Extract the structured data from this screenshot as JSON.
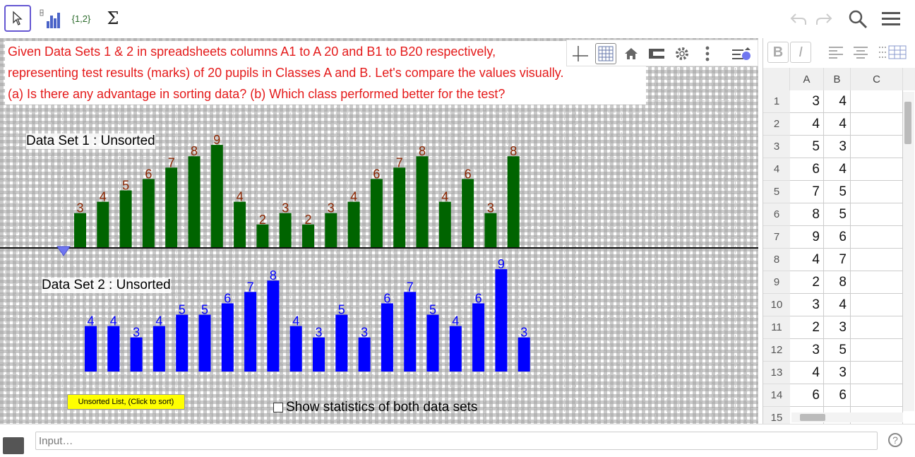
{
  "toolbar": {
    "tools": [
      {
        "name": "move-tool",
        "label": ""
      },
      {
        "name": "chart-tool",
        "label": ""
      },
      {
        "name": "list-tool",
        "label": "{1,2}"
      },
      {
        "name": "sum-tool",
        "label": "Σ"
      }
    ],
    "icons": [
      "undo-icon",
      "redo-icon",
      "search-icon",
      "menu-icon"
    ]
  },
  "question": {
    "lines": [
      "Given Data Sets 1 & 2 in spreadsheets columns A1 to A 20 and B1 to B20 respectively,",
      "representing test results (marks) of 20 pupils in Classes A and B. Let's compare the values visually.",
      "(a) Is there any advantage in sorting data? (b) Which class performed better for the test?"
    ]
  },
  "chart_data": [
    {
      "type": "bar",
      "title": "Data Set 1 : Unsorted",
      "values": [
        3,
        4,
        5,
        6,
        7,
        8,
        9,
        4,
        2,
        3,
        2,
        3,
        4,
        6,
        7,
        8,
        4,
        6,
        3,
        8
      ],
      "color": "#006400",
      "label_color": "#8b2500"
    },
    {
      "type": "bar",
      "title": "Data Set 2 : Unsorted",
      "values": [
        4,
        4,
        3,
        4,
        5,
        5,
        6,
        7,
        8,
        4,
        3,
        5,
        3,
        6,
        7,
        5,
        4,
        6,
        9,
        3
      ],
      "color": "#0000ff",
      "label_color": "#0000ff"
    }
  ],
  "controls": {
    "sort_button": "Unsorted List, (Click to sort)",
    "stats_checkbox": "Show statistics of both data sets"
  },
  "spreadsheet": {
    "columns": [
      "A",
      "B",
      "C"
    ],
    "rows": [
      {
        "n": "1",
        "a": "3",
        "b": "4"
      },
      {
        "n": "2",
        "a": "4",
        "b": "4"
      },
      {
        "n": "3",
        "a": "5",
        "b": "3"
      },
      {
        "n": "4",
        "a": "6",
        "b": "4"
      },
      {
        "n": "5",
        "a": "7",
        "b": "5"
      },
      {
        "n": "6",
        "a": "8",
        "b": "5"
      },
      {
        "n": "7",
        "a": "9",
        "b": "6"
      },
      {
        "n": "8",
        "a": "4",
        "b": "7"
      },
      {
        "n": "9",
        "a": "2",
        "b": "8"
      },
      {
        "n": "10",
        "a": "3",
        "b": "4"
      },
      {
        "n": "11",
        "a": "2",
        "b": "3"
      },
      {
        "n": "12",
        "a": "3",
        "b": "5"
      },
      {
        "n": "13",
        "a": "4",
        "b": "3"
      },
      {
        "n": "14",
        "a": "6",
        "b": "6"
      },
      {
        "n": "15",
        "a": "",
        "b": ""
      }
    ],
    "format": {
      "bold": "B",
      "italic": "I"
    }
  },
  "input": {
    "placeholder": "Input…"
  },
  "help": "?"
}
